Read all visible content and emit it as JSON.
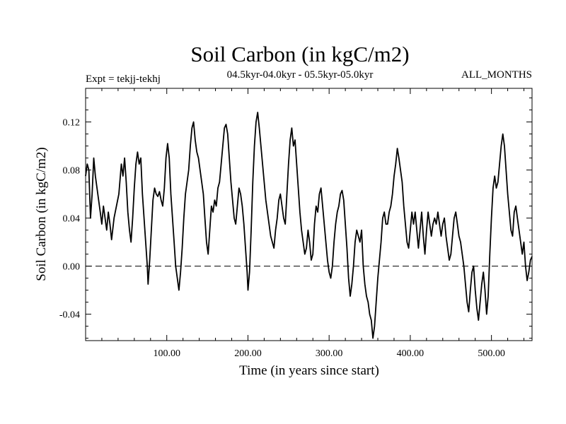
{
  "chart_data": {
    "type": "line",
    "title": "Soil Carbon (in kgC/m2)",
    "subtitle_left": "Expt = tekjj-tekhj",
    "subtitle_center": "04.5kyr-04.0kyr - 05.5kyr-05.0kyr",
    "subtitle_right": "ALL_MONTHS",
    "xlabel": "Time (in years since start)",
    "ylabel": "Soil Carbon (in kgC/m2)",
    "xlim": [
      0,
      550
    ],
    "ylim": [
      -0.062,
      0.148
    ],
    "x_ticks": [
      100,
      200,
      300,
      400,
      500
    ],
    "x_tick_labels": [
      "100.00",
      "200.00",
      "300.00",
      "400.00",
      "500.00"
    ],
    "y_ticks": [
      -0.04,
      0.0,
      0.04,
      0.08,
      0.12
    ],
    "y_tick_labels": [
      "-0.04",
      "0.00",
      "0.04",
      "0.08",
      "0.12"
    ],
    "reference_line": {
      "y": 0.0,
      "style": "dashed"
    },
    "series": [
      {
        "name": "Soil Carbon",
        "color": "#000000",
        "points": [
          [
            0,
            0.075
          ],
          [
            2,
            0.085
          ],
          [
            4,
            0.08
          ],
          [
            6,
            0.04
          ],
          [
            8,
            0.06
          ],
          [
            10,
            0.09
          ],
          [
            12,
            0.075
          ],
          [
            14,
            0.065
          ],
          [
            16,
            0.055
          ],
          [
            18,
            0.045
          ],
          [
            20,
            0.035
          ],
          [
            22,
            0.05
          ],
          [
            24,
            0.04
          ],
          [
            26,
            0.03
          ],
          [
            28,
            0.045
          ],
          [
            30,
            0.035
          ],
          [
            32,
            0.022
          ],
          [
            35,
            0.04
          ],
          [
            38,
            0.05
          ],
          [
            41,
            0.06
          ],
          [
            44,
            0.085
          ],
          [
            46,
            0.075
          ],
          [
            48,
            0.09
          ],
          [
            50,
            0.07
          ],
          [
            52,
            0.045
          ],
          [
            54,
            0.03
          ],
          [
            56,
            0.02
          ],
          [
            58,
            0.04
          ],
          [
            60,
            0.065
          ],
          [
            62,
            0.085
          ],
          [
            64,
            0.095
          ],
          [
            66,
            0.085
          ],
          [
            68,
            0.09
          ],
          [
            70,
            0.06
          ],
          [
            72,
            0.04
          ],
          [
            74,
            0.02
          ],
          [
            76,
            0.0
          ],
          [
            77,
            -0.015
          ],
          [
            79,
            0.005
          ],
          [
            81,
            0.03
          ],
          [
            83,
            0.055
          ],
          [
            85,
            0.065
          ],
          [
            87,
            0.06
          ],
          [
            89,
            0.058
          ],
          [
            91,
            0.062
          ],
          [
            93,
            0.055
          ],
          [
            95,
            0.05
          ],
          [
            97,
            0.065
          ],
          [
            99,
            0.09
          ],
          [
            101,
            0.102
          ],
          [
            103,
            0.09
          ],
          [
            105,
            0.06
          ],
          [
            107,
            0.04
          ],
          [
            109,
            0.02
          ],
          [
            111,
            0.0
          ],
          [
            113,
            -0.01
          ],
          [
            115,
            -0.02
          ],
          [
            117,
            -0.005
          ],
          [
            119,
            0.015
          ],
          [
            121,
            0.04
          ],
          [
            123,
            0.06
          ],
          [
            125,
            0.07
          ],
          [
            127,
            0.08
          ],
          [
            129,
            0.1
          ],
          [
            131,
            0.115
          ],
          [
            133,
            0.12
          ],
          [
            135,
            0.105
          ],
          [
            137,
            0.095
          ],
          [
            139,
            0.09
          ],
          [
            141,
            0.08
          ],
          [
            143,
            0.07
          ],
          [
            145,
            0.06
          ],
          [
            147,
            0.04
          ],
          [
            149,
            0.02
          ],
          [
            151,
            0.01
          ],
          [
            153,
            0.03
          ],
          [
            155,
            0.05
          ],
          [
            157,
            0.045
          ],
          [
            159,
            0.055
          ],
          [
            161,
            0.05
          ],
          [
            163,
            0.065
          ],
          [
            165,
            0.07
          ],
          [
            167,
            0.085
          ],
          [
            169,
            0.1
          ],
          [
            171,
            0.115
          ],
          [
            173,
            0.118
          ],
          [
            175,
            0.11
          ],
          [
            177,
            0.09
          ],
          [
            179,
            0.07
          ],
          [
            181,
            0.055
          ],
          [
            183,
            0.04
          ],
          [
            185,
            0.035
          ],
          [
            187,
            0.05
          ],
          [
            189,
            0.065
          ],
          [
            191,
            0.06
          ],
          [
            193,
            0.05
          ],
          [
            195,
            0.035
          ],
          [
            197,
            0.015
          ],
          [
            199,
            -0.005
          ],
          [
            200,
            -0.02
          ],
          [
            202,
            -0.005
          ],
          [
            204,
            0.03
          ],
          [
            206,
            0.07
          ],
          [
            208,
            0.1
          ],
          [
            210,
            0.12
          ],
          [
            212,
            0.128
          ],
          [
            214,
            0.115
          ],
          [
            216,
            0.1
          ],
          [
            218,
            0.085
          ],
          [
            220,
            0.07
          ],
          [
            222,
            0.055
          ],
          [
            224,
            0.045
          ],
          [
            226,
            0.035
          ],
          [
            228,
            0.025
          ],
          [
            230,
            0.02
          ],
          [
            232,
            0.015
          ],
          [
            234,
            0.03
          ],
          [
            236,
            0.04
          ],
          [
            238,
            0.055
          ],
          [
            240,
            0.06
          ],
          [
            242,
            0.05
          ],
          [
            244,
            0.04
          ],
          [
            246,
            0.035
          ],
          [
            248,
            0.06
          ],
          [
            250,
            0.085
          ],
          [
            252,
            0.105
          ],
          [
            254,
            0.115
          ],
          [
            256,
            0.1
          ],
          [
            258,
            0.105
          ],
          [
            260,
            0.085
          ],
          [
            262,
            0.065
          ],
          [
            264,
            0.045
          ],
          [
            266,
            0.03
          ],
          [
            268,
            0.02
          ],
          [
            270,
            0.01
          ],
          [
            272,
            0.015
          ],
          [
            274,
            0.03
          ],
          [
            276,
            0.02
          ],
          [
            278,
            0.005
          ],
          [
            280,
            0.01
          ],
          [
            282,
            0.035
          ],
          [
            284,
            0.05
          ],
          [
            286,
            0.045
          ],
          [
            288,
            0.06
          ],
          [
            290,
            0.065
          ],
          [
            292,
            0.05
          ],
          [
            294,
            0.035
          ],
          [
            296,
            0.02
          ],
          [
            298,
            0.005
          ],
          [
            300,
            -0.005
          ],
          [
            302,
            -0.01
          ],
          [
            304,
            0.0
          ],
          [
            306,
            0.02
          ],
          [
            308,
            0.035
          ],
          [
            310,
            0.045
          ],
          [
            312,
            0.05
          ],
          [
            314,
            0.06
          ],
          [
            316,
            0.063
          ],
          [
            318,
            0.055
          ],
          [
            320,
            0.035
          ],
          [
            322,
            0.015
          ],
          [
            324,
            -0.01
          ],
          [
            326,
            -0.025
          ],
          [
            328,
            -0.015
          ],
          [
            330,
            0.0
          ],
          [
            332,
            0.02
          ],
          [
            334,
            0.03
          ],
          [
            336,
            0.025
          ],
          [
            338,
            0.02
          ],
          [
            340,
            0.03
          ],
          [
            342,
            0.0
          ],
          [
            344,
            -0.015
          ],
          [
            346,
            -0.025
          ],
          [
            348,
            -0.03
          ],
          [
            350,
            -0.04
          ],
          [
            352,
            -0.045
          ],
          [
            354,
            -0.06
          ],
          [
            356,
            -0.05
          ],
          [
            358,
            -0.03
          ],
          [
            360,
            -0.01
          ],
          [
            362,
            0.005
          ],
          [
            364,
            0.02
          ],
          [
            366,
            0.04
          ],
          [
            368,
            0.045
          ],
          [
            370,
            0.035
          ],
          [
            372,
            0.035
          ],
          [
            374,
            0.045
          ],
          [
            376,
            0.05
          ],
          [
            378,
            0.06
          ],
          [
            380,
            0.075
          ],
          [
            382,
            0.085
          ],
          [
            384,
            0.098
          ],
          [
            386,
            0.09
          ],
          [
            388,
            0.08
          ],
          [
            390,
            0.07
          ],
          [
            392,
            0.05
          ],
          [
            394,
            0.035
          ],
          [
            396,
            0.02
          ],
          [
            398,
            0.015
          ],
          [
            400,
            0.03
          ],
          [
            402,
            0.045
          ],
          [
            404,
            0.035
          ],
          [
            406,
            0.045
          ],
          [
            408,
            0.03
          ],
          [
            410,
            0.015
          ],
          [
            412,
            0.03
          ],
          [
            414,
            0.045
          ],
          [
            416,
            0.025
          ],
          [
            418,
            0.01
          ],
          [
            420,
            0.03
          ],
          [
            422,
            0.045
          ],
          [
            424,
            0.035
          ],
          [
            426,
            0.025
          ],
          [
            428,
            0.035
          ],
          [
            430,
            0.04
          ],
          [
            432,
            0.035
          ],
          [
            434,
            0.045
          ],
          [
            436,
            0.035
          ],
          [
            438,
            0.025
          ],
          [
            440,
            0.035
          ],
          [
            442,
            0.04
          ],
          [
            444,
            0.025
          ],
          [
            446,
            0.015
          ],
          [
            448,
            0.005
          ],
          [
            450,
            0.01
          ],
          [
            452,
            0.025
          ],
          [
            454,
            0.04
          ],
          [
            456,
            0.045
          ],
          [
            458,
            0.035
          ],
          [
            460,
            0.025
          ],
          [
            462,
            0.02
          ],
          [
            464,
            0.01
          ],
          [
            466,
            0.0
          ],
          [
            468,
            -0.015
          ],
          [
            470,
            -0.03
          ],
          [
            472,
            -0.038
          ],
          [
            474,
            -0.02
          ],
          [
            476,
            -0.005
          ],
          [
            478,
            0.0
          ],
          [
            480,
            -0.02
          ],
          [
            482,
            -0.035
          ],
          [
            484,
            -0.045
          ],
          [
            486,
            -0.03
          ],
          [
            488,
            -0.015
          ],
          [
            490,
            -0.005
          ],
          [
            492,
            -0.02
          ],
          [
            494,
            -0.04
          ],
          [
            496,
            -0.025
          ],
          [
            498,
            0.01
          ],
          [
            500,
            0.04
          ],
          [
            502,
            0.065
          ],
          [
            504,
            0.075
          ],
          [
            506,
            0.065
          ],
          [
            508,
            0.07
          ],
          [
            510,
            0.085
          ],
          [
            512,
            0.1
          ],
          [
            514,
            0.11
          ],
          [
            516,
            0.1
          ],
          [
            518,
            0.08
          ],
          [
            520,
            0.06
          ],
          [
            522,
            0.045
          ],
          [
            524,
            0.03
          ],
          [
            526,
            0.025
          ],
          [
            528,
            0.045
          ],
          [
            530,
            0.05
          ],
          [
            532,
            0.04
          ],
          [
            534,
            0.03
          ],
          [
            536,
            0.02
          ],
          [
            538,
            0.01
          ],
          [
            540,
            0.02
          ],
          [
            542,
            0.0
          ],
          [
            544,
            -0.012
          ],
          [
            546,
            -0.005
          ],
          [
            548,
            0.005
          ],
          [
            550,
            0.008
          ]
        ]
      }
    ]
  }
}
